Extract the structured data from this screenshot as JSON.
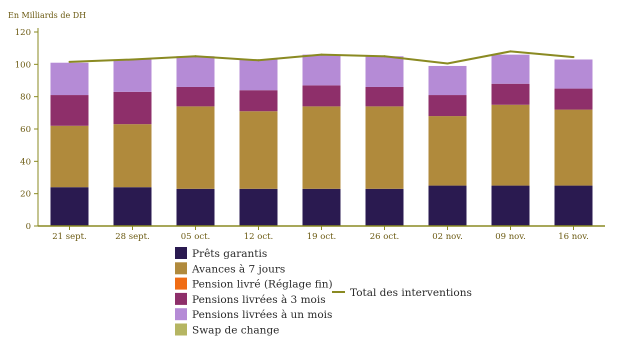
{
  "chart_data": {
    "type": "bar",
    "stacked": true,
    "unit_label": "En Milliards de DH",
    "categories": [
      "21 sept.",
      "28 sept.",
      "05 oct.",
      "12 oct.",
      "19 oct.",
      "26 oct.",
      "02 nov.",
      "09 nov.",
      "16 nov."
    ],
    "ylim": [
      0,
      120
    ],
    "yticks": [
      0,
      20,
      40,
      60,
      80,
      100,
      120
    ],
    "grid": false,
    "legend_position": "bottom",
    "series": [
      {
        "name": "Prêts garantis",
        "color": "#2a1a50",
        "values": [
          24,
          24,
          23,
          23,
          23,
          23,
          25,
          25,
          25
        ]
      },
      {
        "name": "Avances à 7 jours",
        "color": "#b08a3c",
        "values": [
          38,
          39,
          51,
          48,
          51,
          51,
          43,
          50,
          47
        ]
      },
      {
        "name": "Pension livré (Réglage fin)",
        "color": "#f06c14",
        "values": [
          0,
          0,
          0,
          0,
          0,
          0,
          0,
          0,
          0
        ]
      },
      {
        "name": "Pensions livrées à 3 mois",
        "color": "#8e2f6a",
        "values": [
          19,
          20,
          12,
          13,
          13,
          12,
          13,
          13,
          13
        ]
      },
      {
        "name": "Pensions livrées à un mois",
        "color": "#b58bd6",
        "values": [
          20,
          20,
          19,
          19,
          19,
          19,
          18,
          18,
          18
        ]
      },
      {
        "name": "Swap de change",
        "color": "#b5b562",
        "values": [
          0,
          0,
          0,
          0,
          0,
          0,
          0,
          0,
          0
        ]
      }
    ],
    "line_series": {
      "name": "Total des interventions",
      "color": "#8a8a22",
      "values": [
        101.5,
        103,
        105,
        102.5,
        106,
        105,
        100.5,
        108,
        104.5
      ]
    },
    "axis_color": "#8a8a22"
  }
}
